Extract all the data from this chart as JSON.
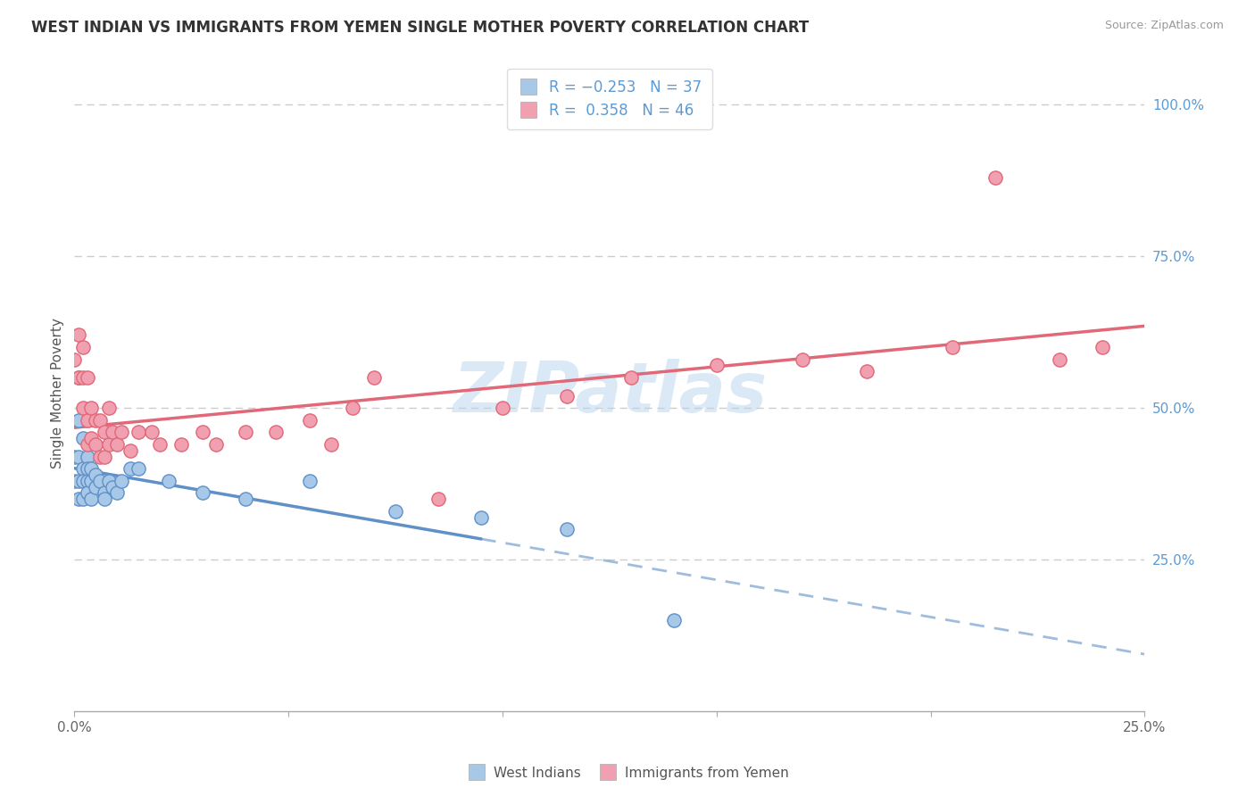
{
  "title": "WEST INDIAN VS IMMIGRANTS FROM YEMEN SINGLE MOTHER POVERTY CORRELATION CHART",
  "source": "Source: ZipAtlas.com",
  "ylabel": "Single Mother Poverty",
  "xlim": [
    0.0,
    0.25
  ],
  "ylim": [
    0.0,
    1.05
  ],
  "color_blue": "#A8C8E8",
  "color_pink": "#F0A0B0",
  "color_blue_line": "#6090C8",
  "color_pink_line": "#E06878",
  "watermark_color": "#B8D4EE",
  "background_color": "#FFFFFF",
  "grid_color": "#CCCCCC",
  "blue_x": [
    0.0,
    0.0,
    0.001,
    0.001,
    0.001,
    0.001,
    0.001,
    0.002,
    0.002,
    0.002,
    0.002,
    0.003,
    0.003,
    0.003,
    0.003,
    0.004,
    0.004,
    0.004,
    0.005,
    0.005,
    0.006,
    0.007,
    0.007,
    0.008,
    0.009,
    0.01,
    0.011,
    0.013,
    0.015,
    0.022,
    0.03,
    0.04,
    0.055,
    0.075,
    0.095,
    0.115,
    0.14
  ],
  "blue_y": [
    0.42,
    0.38,
    0.55,
    0.48,
    0.42,
    0.38,
    0.35,
    0.45,
    0.4,
    0.38,
    0.35,
    0.42,
    0.4,
    0.38,
    0.36,
    0.4,
    0.38,
    0.35,
    0.39,
    0.37,
    0.38,
    0.36,
    0.35,
    0.38,
    0.37,
    0.36,
    0.38,
    0.4,
    0.4,
    0.38,
    0.36,
    0.35,
    0.38,
    0.33,
    0.32,
    0.3,
    0.15
  ],
  "pink_x": [
    0.0,
    0.001,
    0.001,
    0.002,
    0.002,
    0.002,
    0.003,
    0.003,
    0.003,
    0.004,
    0.004,
    0.005,
    0.005,
    0.006,
    0.006,
    0.007,
    0.007,
    0.008,
    0.008,
    0.009,
    0.01,
    0.011,
    0.013,
    0.015,
    0.018,
    0.02,
    0.025,
    0.03,
    0.033,
    0.04,
    0.047,
    0.055,
    0.06,
    0.065,
    0.07,
    0.085,
    0.1,
    0.115,
    0.13,
    0.15,
    0.17,
    0.185,
    0.205,
    0.215,
    0.23,
    0.24
  ],
  "pink_y": [
    0.58,
    0.62,
    0.55,
    0.6,
    0.55,
    0.5,
    0.55,
    0.48,
    0.44,
    0.5,
    0.45,
    0.48,
    0.44,
    0.48,
    0.42,
    0.46,
    0.42,
    0.5,
    0.44,
    0.46,
    0.44,
    0.46,
    0.43,
    0.46,
    0.46,
    0.44,
    0.44,
    0.46,
    0.44,
    0.46,
    0.46,
    0.48,
    0.44,
    0.5,
    0.55,
    0.35,
    0.5,
    0.52,
    0.55,
    0.57,
    0.58,
    0.56,
    0.6,
    0.88,
    0.58,
    0.6
  ]
}
